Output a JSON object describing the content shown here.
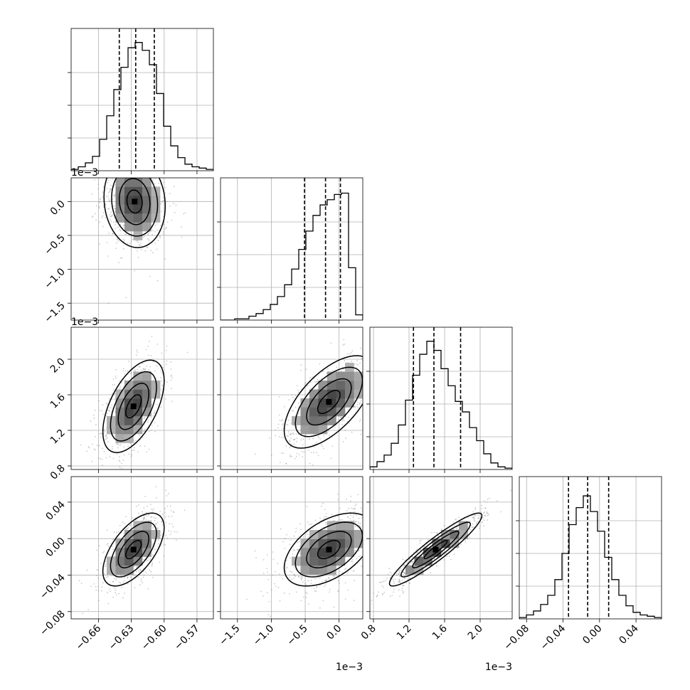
{
  "chart_data": {
    "type": "corner",
    "parameters": [
      {
        "id": "p0",
        "axis_range": [
          -0.685,
          -0.555
        ],
        "ticks": [
          -0.66,
          -0.63,
          -0.6,
          -0.57
        ],
        "tick_labels": [
          "−0.66",
          "−0.63",
          "−0.60",
          "−0.57"
        ],
        "offset_label": "",
        "median": -0.626,
        "quantiles": [
          -0.641,
          -0.626,
          -0.609
        ],
        "histogram": [
          0.01,
          0.03,
          0.06,
          0.11,
          0.24,
          0.42,
          0.62,
          0.79,
          0.94,
          0.98,
          0.92,
          0.81,
          0.59,
          0.34,
          0.19,
          0.1,
          0.05,
          0.03,
          0.02,
          0.01
        ]
      },
      {
        "id": "p1",
        "axis_range": [
          -1.75,
          0.35
        ],
        "ticks": [
          -1.5,
          -1.0,
          -0.5,
          0.0
        ],
        "tick_labels": [
          "−1.5",
          "−1.0",
          "−0.5",
          "0.0"
        ],
        "offset_label": "1e−3",
        "median": -0.2,
        "quantiles": [
          -0.51,
          -0.2,
          0.02
        ],
        "histogram": [
          0.0,
          0.0,
          0.01,
          0.01,
          0.03,
          0.05,
          0.08,
          0.12,
          0.18,
          0.27,
          0.39,
          0.54,
          0.68,
          0.8,
          0.88,
          0.92,
          0.96,
          0.97,
          0.4,
          0.04
        ]
      },
      {
        "id": "p2",
        "axis_range": [
          0.76,
          2.36
        ],
        "ticks": [
          0.8,
          1.2,
          1.6,
          2.0
        ],
        "tick_labels": [
          "0.8",
          "1.2",
          "1.6",
          "2.0"
        ],
        "offset_label": "1e−3",
        "median": 1.48,
        "quantiles": [
          1.25,
          1.48,
          1.78
        ],
        "histogram": [
          0.02,
          0.06,
          0.11,
          0.2,
          0.34,
          0.53,
          0.72,
          0.88,
          0.98,
          0.91,
          0.77,
          0.64,
          0.52,
          0.44,
          0.32,
          0.22,
          0.12,
          0.05,
          0.02,
          0.01
        ]
      },
      {
        "id": "p3",
        "axis_range": [
          -0.088,
          0.068
        ],
        "ticks": [
          -0.08,
          -0.04,
          0.0,
          0.04
        ],
        "tick_labels": [
          "−0.08",
          "−0.04",
          "0.00",
          "0.04"
        ],
        "offset_label": "",
        "median": -0.013,
        "quantiles": [
          -0.034,
          -0.013,
          0.01
        ],
        "histogram": [
          0.01,
          0.03,
          0.06,
          0.11,
          0.18,
          0.3,
          0.5,
          0.72,
          0.85,
          0.94,
          0.82,
          0.67,
          0.47,
          0.3,
          0.18,
          0.1,
          0.05,
          0.03,
          0.02,
          0.01
        ]
      }
    ],
    "pair_distributions": [
      {
        "x": "p0",
        "y": "p1",
        "center": [
          -0.627,
          0.0
        ],
        "sd": [
          0.014,
          0.34
        ],
        "corr": -0.1
      },
      {
        "x": "p0",
        "y": "p2",
        "center": [
          -0.628,
          1.47
        ],
        "sd": [
          0.014,
          0.26
        ],
        "corr": 0.55
      },
      {
        "x": "p1",
        "y": "p2",
        "center": [
          -0.15,
          1.52
        ],
        "sd": [
          0.33,
          0.26
        ],
        "corr": 0.62
      },
      {
        "x": "p0",
        "y": "p3",
        "center": [
          -0.628,
          -0.012
        ],
        "sd": [
          0.014,
          0.02
        ],
        "corr": 0.6
      },
      {
        "x": "p1",
        "y": "p3",
        "center": [
          -0.15,
          -0.012
        ],
        "sd": [
          0.33,
          0.02
        ],
        "corr": 0.5
      },
      {
        "x": "p2",
        "y": "p3",
        "center": [
          1.5,
          -0.012
        ],
        "sd": [
          0.26,
          0.02
        ],
        "corr": 0.93
      }
    ],
    "contour_levels_sigma": [
      0.5,
      1.0,
      1.5,
      2.0
    ],
    "grid": true,
    "colors": {
      "points": "#8c8c8c",
      "contour": "#000000",
      "hist": "#000000",
      "quantile": "#000000"
    }
  }
}
